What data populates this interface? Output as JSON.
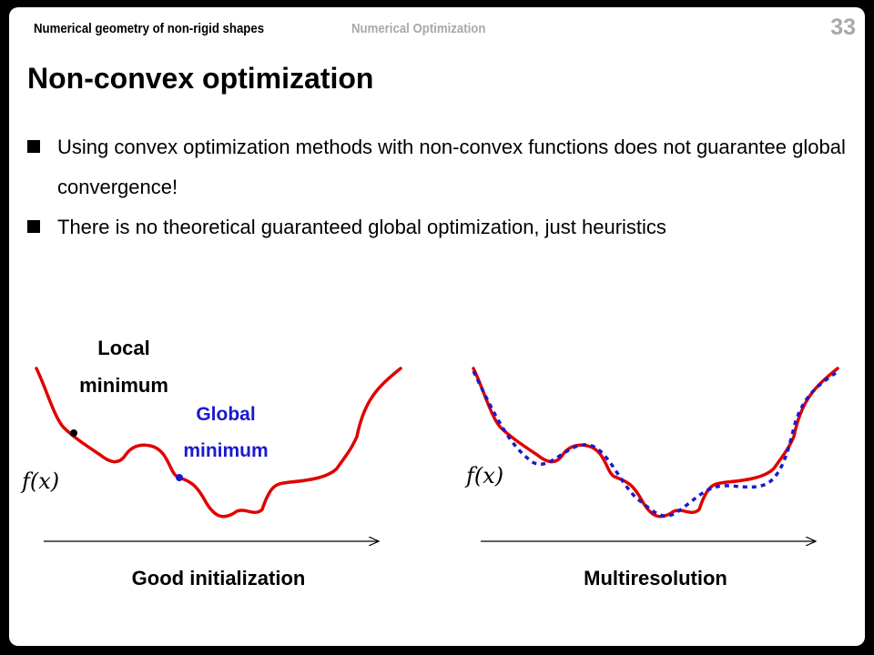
{
  "header": {
    "course": "Numerical geometry of non-rigid shapes",
    "section": "Numerical Optimization",
    "page": "33"
  },
  "title": "Non-convex optimization",
  "bullets": [
    "Using convex optimization methods with non-convex functions does not guarantee global convergence!",
    "There is no theoretical guaranteed global optimization, just heuristics"
  ],
  "figures": {
    "left": {
      "local_label": "Local minimum",
      "global_label": "Global minimum",
      "function_label": "f(x)",
      "caption": "Good initialization"
    },
    "right": {
      "function_label": "f(x)",
      "caption": "Multiresolution"
    }
  },
  "colors": {
    "curve": "#e00000",
    "coarse_curve": "#1a1acc",
    "global_label": "#1a1acc"
  }
}
